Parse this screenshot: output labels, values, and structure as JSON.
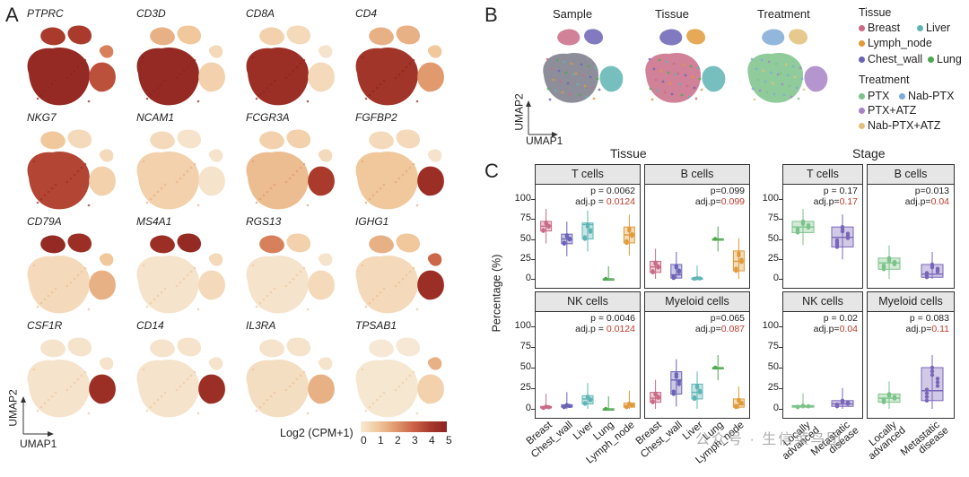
{
  "panels": {
    "a": "A",
    "b": "B",
    "c": "C"
  },
  "genes": [
    "PTPRC",
    "CD3D",
    "CD8A",
    "CD4",
    "NKG7",
    "NCAM1",
    "FCGR3A",
    "FGFBP2",
    "CD79A",
    "MS4A1",
    "RGS13",
    "IGHG1",
    "CSF1R",
    "CD14",
    "IL3RA",
    "TPSAB1"
  ],
  "umap_axes": {
    "y": "UMAP2",
    "x": "UMAP1"
  },
  "colorbar": {
    "title": "Log2 (CPM+1)",
    "ticks": [
      "0",
      "1",
      "2",
      "3",
      "4",
      "5"
    ]
  },
  "panel_b": {
    "titles": [
      "Sample",
      "Tissue",
      "Treatment"
    ],
    "ylabel": "UMAP2",
    "xlabel": "UMAP1"
  },
  "legend": {
    "tissue_title": "Tissue",
    "tissue": [
      {
        "label": "Breast",
        "color": "#c96b86"
      },
      {
        "label": "Liver",
        "color": "#5fb4b4"
      },
      {
        "label": "Lymph_node",
        "color": "#e09a3a"
      },
      {
        "label": "Chest_wall",
        "color": "#6b63b5"
      },
      {
        "label": "Lung",
        "color": "#4fa74f"
      }
    ],
    "treatment_title": "Treatment",
    "treatment": [
      {
        "label": "PTX",
        "color": "#7cc28a"
      },
      {
        "label": "Nab-PTX",
        "color": "#7fa9d6"
      },
      {
        "label": "PTX+ATZ",
        "color": "#a883c4"
      },
      {
        "label": "Nab-PTX+ATZ",
        "color": "#e3c07a"
      }
    ]
  },
  "panel_c": {
    "ylabel": "Percentage (%)",
    "tissue_header": "Tissue",
    "stage_header": "Stage",
    "yticks": [
      "0",
      "25",
      "50",
      "75",
      "100"
    ],
    "tissue_categories": [
      "Breast",
      "Chest_wall",
      "Liver",
      "Lung",
      "Lymph_node"
    ],
    "stage_categories": [
      "Locally advanced",
      "Metastatic disease"
    ],
    "stage_lines": [
      [
        "Locally",
        "advanced"
      ],
      [
        "Metastatic",
        "disease"
      ]
    ]
  },
  "chart_data": [
    {
      "type": "box",
      "title": "T cells",
      "group": "Tissue",
      "categories": [
        "Breast",
        "Chest_wall",
        "Liver",
        "Lung",
        "Lymph_node"
      ],
      "medians": [
        66,
        50,
        68,
        0,
        55
      ],
      "q1": [
        60,
        44,
        50,
        0,
        45
      ],
      "q3": [
        72,
        56,
        70,
        0,
        65
      ],
      "p": "p = 0.0062",
      "adjp_label": "adj.p = ",
      "adjp": "0.0124",
      "ylim": [
        0,
        100
      ]
    },
    {
      "type": "box",
      "title": "B cells",
      "group": "Tissue",
      "categories": [
        "Breast",
        "Chest_wall",
        "Liver",
        "Lung",
        "Lymph_node"
      ],
      "medians": [
        15,
        5,
        1,
        50,
        22
      ],
      "q1": [
        8,
        1,
        0,
        50,
        10
      ],
      "q3": [
        22,
        18,
        1,
        50,
        35
      ],
      "p": "p=0.099",
      "adjp_label": "adj.p=",
      "adjp": "0.099",
      "ylim": [
        0,
        100
      ]
    },
    {
      "type": "box",
      "title": "NK cells",
      "group": "Tissue",
      "categories": [
        "Breast",
        "Chest_wall",
        "Liver",
        "Lung",
        "Lymph_node"
      ],
      "medians": [
        2,
        3,
        12,
        0,
        4
      ],
      "q1": [
        1,
        2,
        6,
        0,
        2
      ],
      "q3": [
        3,
        5,
        16,
        0,
        7
      ],
      "p": "p = 0.0046",
      "adjp_label": "adj.p = ",
      "adjp": "0.0124",
      "ylim": [
        0,
        100
      ]
    },
    {
      "type": "box",
      "title": "Myeloid cells",
      "group": "Tissue",
      "categories": [
        "Breast",
        "Chest_wall",
        "Liver",
        "Lung",
        "Lymph_node"
      ],
      "medians": [
        13,
        35,
        20,
        50,
        5
      ],
      "q1": [
        8,
        18,
        12,
        50,
        2
      ],
      "q3": [
        20,
        45,
        30,
        50,
        12
      ],
      "p": "p=0.065",
      "adjp_label": "adj.p=",
      "adjp": "0.087",
      "ylim": [
        0,
        100
      ]
    },
    {
      "type": "box",
      "title": "T cells",
      "group": "Stage",
      "categories": [
        "Locally advanced",
        "Metastatic disease"
      ],
      "medians": [
        65,
        52
      ],
      "q1": [
        58,
        40
      ],
      "q3": [
        72,
        65
      ],
      "p": "p = 0.17",
      "adjp_label": "adj.p=",
      "adjp": "0.17",
      "ylim": [
        0,
        100
      ]
    },
    {
      "type": "box",
      "title": "B cells",
      "group": "Stage",
      "categories": [
        "Locally advanced",
        "Metastatic disease"
      ],
      "medians": [
        20,
        6
      ],
      "q1": [
        12,
        2
      ],
      "q3": [
        26,
        18
      ],
      "p": "p=0.013",
      "adjp_label": "adj.p=",
      "adjp": "0.04",
      "ylim": [
        0,
        100
      ]
    },
    {
      "type": "box",
      "title": "NK cells",
      "group": "Stage",
      "categories": [
        "Locally advanced",
        "Metastatic disease"
      ],
      "medians": [
        3,
        6
      ],
      "q1": [
        2,
        3
      ],
      "q3": [
        4,
        10
      ],
      "p": "p = 0.02",
      "adjp_label": "adj.p=",
      "adjp": "0.04",
      "ylim": [
        0,
        100
      ]
    },
    {
      "type": "box",
      "title": "Myeloid cells",
      "group": "Stage",
      "categories": [
        "Locally advanced",
        "Metastatic disease"
      ],
      "medians": [
        13,
        22
      ],
      "q1": [
        8,
        10
      ],
      "q3": [
        18,
        50
      ],
      "p": "p = 0.083",
      "adjp_label": "adj.p=",
      "adjp": "0.11",
      "ylim": [
        0,
        100
      ]
    }
  ],
  "watermark": "公众号 · 生信菜鸟团"
}
